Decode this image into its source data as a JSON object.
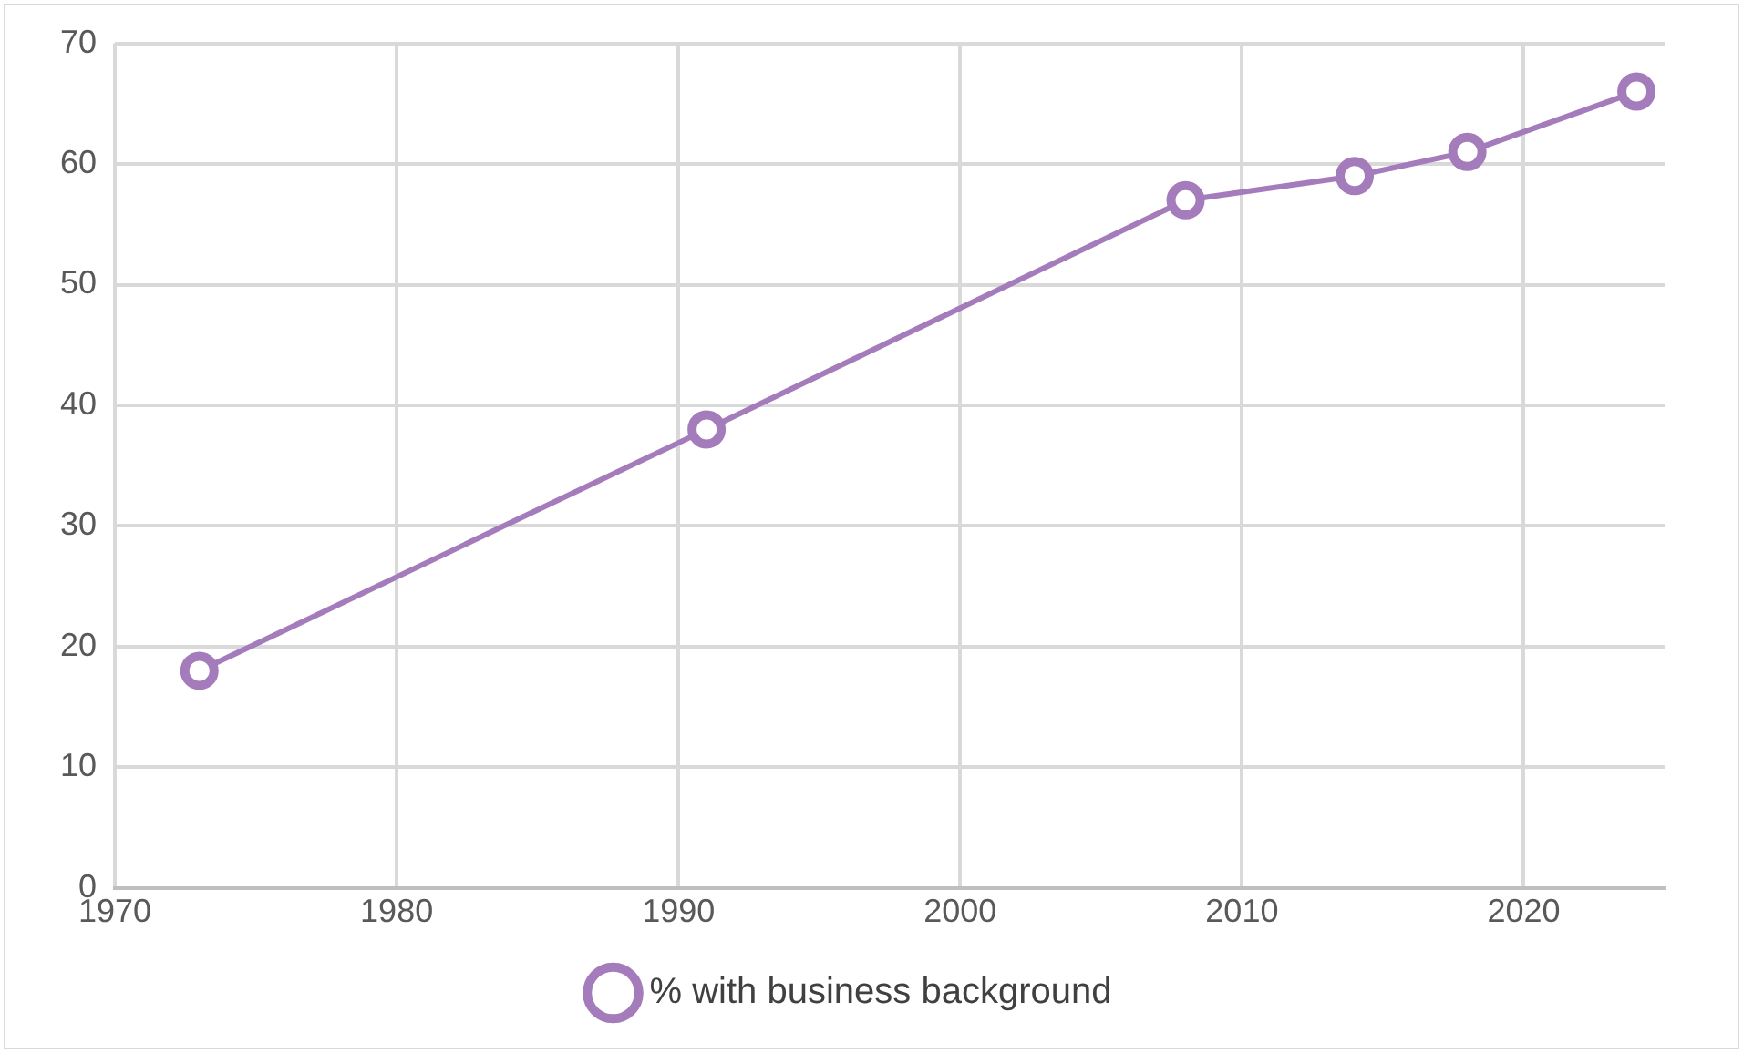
{
  "chart_data": {
    "type": "line",
    "x": [
      1973,
      1991,
      2008,
      2014,
      2018,
      2024
    ],
    "series": [
      {
        "name": "% with business background",
        "color": "#a57cbb",
        "values": [
          18,
          38,
          57,
          59,
          61,
          66
        ]
      }
    ],
    "xlim": [
      1970,
      2025
    ],
    "xticks": [
      1970,
      1980,
      1990,
      2000,
      2010,
      2020
    ],
    "ylim": [
      0,
      70
    ],
    "yticks": [
      0,
      10,
      20,
      30,
      40,
      50,
      60,
      70
    ],
    "grid": true,
    "legend": "bottom",
    "marker": "circle",
    "line_style": "solid"
  }
}
